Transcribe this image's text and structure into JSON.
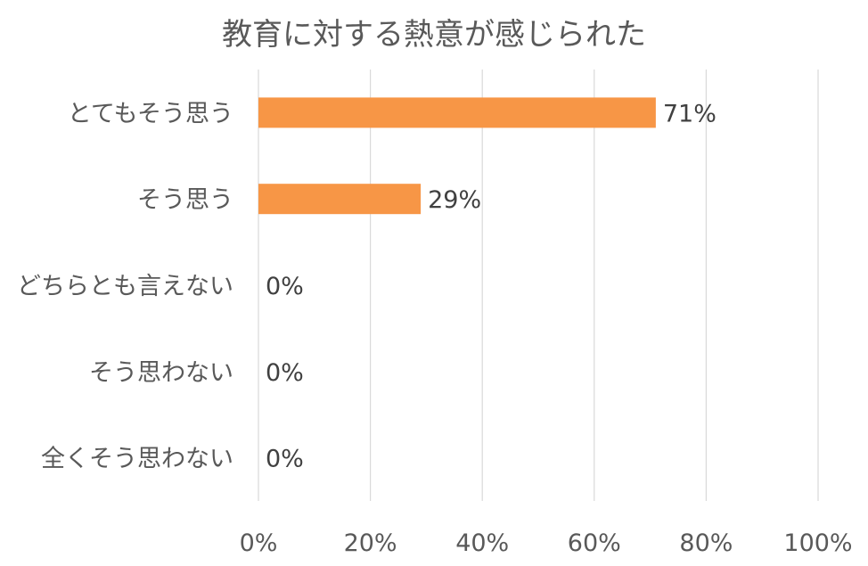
{
  "chart_data": {
    "type": "bar",
    "orientation": "horizontal",
    "title": "教育に対する熱意が感じられた",
    "categories": [
      "とてもそう思う",
      "そう思う",
      "どちらとも言えない",
      "そう思わない",
      "全くそう思わない"
    ],
    "values": [
      71,
      29,
      0,
      0,
      0
    ],
    "data_labels": [
      "71%",
      "29%",
      "0%",
      "0%",
      "0%"
    ],
    "x_ticks": [
      0,
      20,
      40,
      60,
      80,
      100
    ],
    "x_tick_labels": [
      "0%",
      "20%",
      "40%",
      "60%",
      "80%",
      "100%"
    ],
    "xlim": [
      0,
      100
    ],
    "grid": true,
    "legend": "none",
    "bar_color": "#F79646"
  }
}
